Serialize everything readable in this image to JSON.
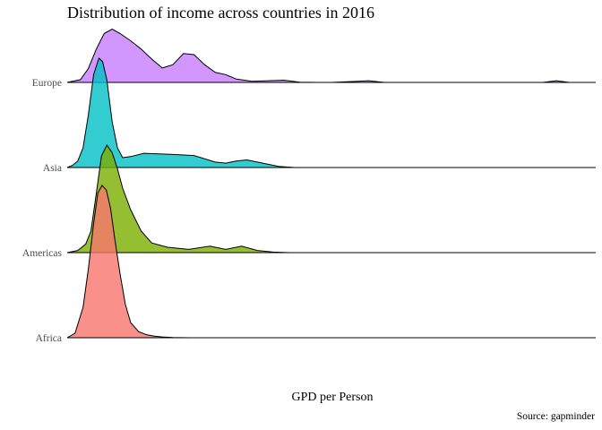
{
  "chart_data": {
    "type": "ridgeline",
    "title": "Distribution of income across countries in 2016",
    "xlabel": "GPD per Person",
    "ylabel": "",
    "caption": "Source: gapminder",
    "x_ticks_shown": false,
    "grid": false,
    "legend": "none",
    "categories": [
      "Africa",
      "Americas",
      "Asia",
      "Europe"
    ],
    "series": [
      {
        "name": "Africa",
        "color": "#F8766D",
        "x": [
          0.0,
          0.015,
          0.03,
          0.04,
          0.05,
          0.058,
          0.066,
          0.074,
          0.082,
          0.09,
          0.1,
          0.11,
          0.12,
          0.135,
          0.15,
          0.165,
          0.18,
          0.2,
          0.23,
          1.0
        ],
        "density": [
          0.0,
          0.03,
          0.2,
          0.45,
          0.75,
          0.95,
          1.0,
          0.97,
          0.85,
          0.65,
          0.42,
          0.22,
          0.1,
          0.04,
          0.02,
          0.01,
          0.005,
          0.002,
          0.0,
          0.0
        ]
      },
      {
        "name": "Americas",
        "color": "#7CAE00",
        "x": [
          0.0,
          0.02,
          0.035,
          0.045,
          0.055,
          0.065,
          0.075,
          0.085,
          0.095,
          0.105,
          0.12,
          0.14,
          0.16,
          0.19,
          0.23,
          0.27,
          0.3,
          0.33,
          0.36,
          0.39,
          0.42,
          1.0
        ],
        "density": [
          0.0,
          0.02,
          0.08,
          0.2,
          0.55,
          0.9,
          1.0,
          0.93,
          0.78,
          0.6,
          0.4,
          0.2,
          0.09,
          0.05,
          0.03,
          0.06,
          0.03,
          0.06,
          0.02,
          0.005,
          0.0,
          0.0
        ]
      },
      {
        "name": "Asia",
        "color": "#00BFC4",
        "x": [
          0.0,
          0.01,
          0.02,
          0.03,
          0.04,
          0.05,
          0.06,
          0.067,
          0.075,
          0.085,
          0.095,
          0.105,
          0.12,
          0.145,
          0.2,
          0.24,
          0.28,
          0.3,
          0.32,
          0.34,
          0.37,
          0.4,
          0.43,
          1.0
        ],
        "density": [
          0.0,
          0.02,
          0.06,
          0.18,
          0.48,
          0.85,
          1.0,
          0.97,
          0.8,
          0.42,
          0.18,
          0.09,
          0.1,
          0.13,
          0.12,
          0.11,
          0.05,
          0.04,
          0.06,
          0.07,
          0.04,
          0.01,
          0.0,
          0.0
        ]
      },
      {
        "name": "Europe",
        "color": "#C77CFF",
        "x": [
          0.0,
          0.025,
          0.04,
          0.055,
          0.07,
          0.085,
          0.1,
          0.12,
          0.14,
          0.16,
          0.18,
          0.2,
          0.22,
          0.24,
          0.26,
          0.28,
          0.3,
          0.32,
          0.35,
          0.38,
          0.41,
          0.44,
          0.47,
          0.5,
          0.55,
          0.57,
          0.6,
          0.9,
          0.925,
          0.95,
          1.0
        ],
        "density": [
          0.0,
          0.05,
          0.25,
          0.6,
          0.88,
          0.96,
          0.88,
          0.75,
          0.6,
          0.42,
          0.26,
          0.32,
          0.52,
          0.5,
          0.32,
          0.18,
          0.14,
          0.06,
          0.02,
          0.03,
          0.04,
          0.005,
          0.0,
          0.0,
          0.02,
          0.03,
          0.0,
          0.0,
          0.03,
          0.0,
          0.0
        ]
      }
    ]
  }
}
